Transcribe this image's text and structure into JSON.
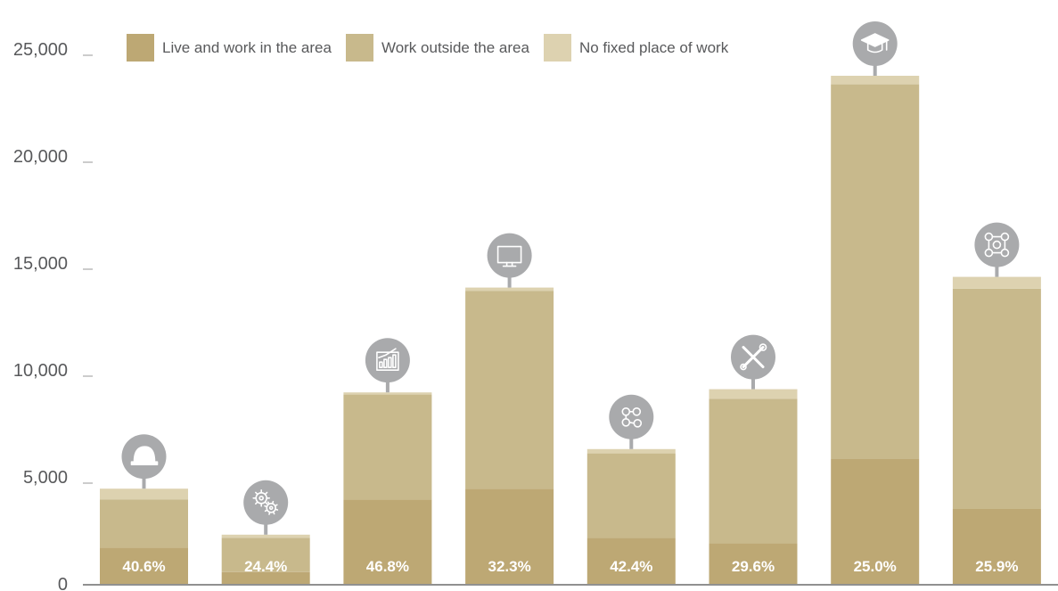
{
  "chart_data": {
    "type": "bar",
    "stacked": true,
    "title": "",
    "xlabel": "",
    "ylabel": "",
    "ylim": [
      0,
      25500
    ],
    "yticks": [
      0,
      5000,
      10000,
      15000,
      20000,
      25000
    ],
    "ytick_labels": [
      "0",
      "5,000",
      "10,000",
      "15,000",
      "20,000",
      "25,000"
    ],
    "grid": false,
    "legend_position": "top",
    "categories_icons": [
      "hard-hat-icon",
      "gears-icon",
      "growth-chart-icon",
      "computer-monitor-icon",
      "people-network-icon",
      "tools-icon",
      "graduation-cap-icon",
      "group-network-icon"
    ],
    "series": [
      {
        "name": "Live and work in the area",
        "color": "#bda874",
        "values": [
          1700,
          550,
          3950,
          4450,
          2150,
          1900,
          5850,
          3500
        ]
      },
      {
        "name": "Work outside the area",
        "color": "#c8b98c",
        "values": [
          2250,
          1600,
          4900,
          9250,
          3950,
          6750,
          17500,
          10300
        ]
      },
      {
        "name": "No fixed place of work",
        "color": "#ddd2b0",
        "values": [
          500,
          150,
          100,
          150,
          200,
          450,
          400,
          550
        ]
      }
    ],
    "bar_labels": [
      "40.6%",
      "24.4%",
      "46.8%",
      "32.3%",
      "42.4%",
      "29.6%",
      "25.0%",
      "25.9%"
    ]
  }
}
